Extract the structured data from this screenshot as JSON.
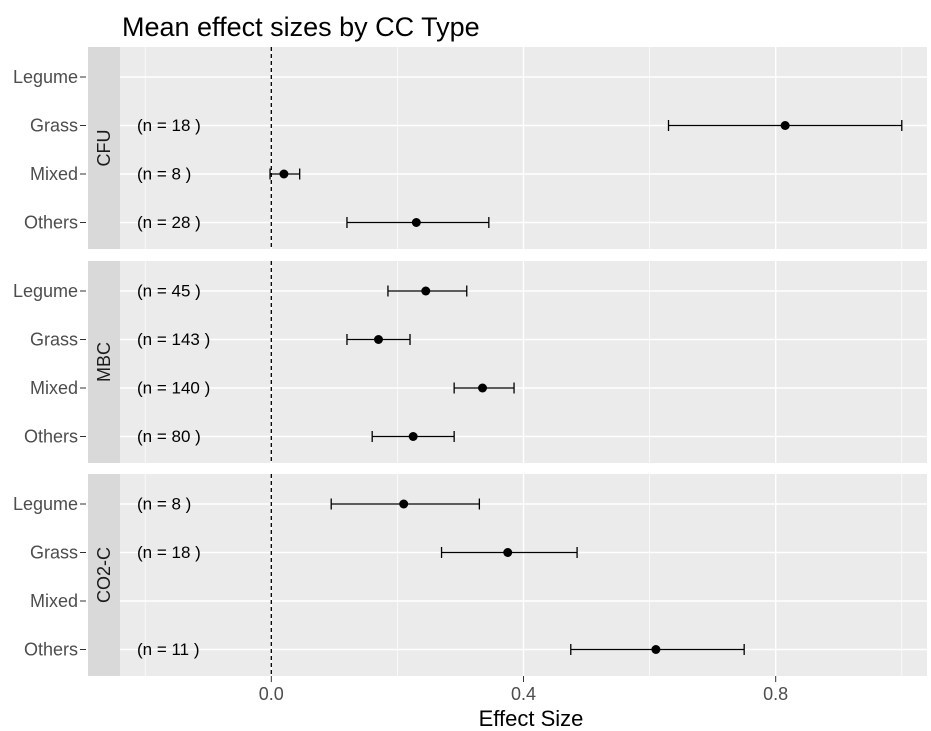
{
  "chart_data": {
    "type": "forest",
    "title": "Mean effect sizes by CC Type",
    "xlabel": "Effect Size",
    "x_ticks": [
      "0.0",
      "0.4",
      "0.8"
    ],
    "xlim": [
      -0.24,
      1.04
    ],
    "reference_line_x": 0.0,
    "categories": [
      "Legume",
      "Grass",
      "Mixed",
      "Others"
    ],
    "panels": [
      {
        "name": "CFU",
        "rows": [
          {
            "category": "Legume",
            "n_label": "",
            "mean": null,
            "lower": null,
            "upper": null
          },
          {
            "category": "Grass",
            "n_label": "(n =  18 )",
            "mean": 0.815,
            "lower": 0.63,
            "upper": 1.0
          },
          {
            "category": "Mixed",
            "n_label": "(n =  8 )",
            "mean": 0.02,
            "lower": -0.002,
            "upper": 0.045
          },
          {
            "category": "Others",
            "n_label": "(n =  28 )",
            "mean": 0.23,
            "lower": 0.12,
            "upper": 0.345
          }
        ]
      },
      {
        "name": "MBC",
        "rows": [
          {
            "category": "Legume",
            "n_label": "(n =  45 )",
            "mean": 0.245,
            "lower": 0.185,
            "upper": 0.31
          },
          {
            "category": "Grass",
            "n_label": "(n =  143 )",
            "mean": 0.17,
            "lower": 0.12,
            "upper": 0.22
          },
          {
            "category": "Mixed",
            "n_label": "(n =  140 )",
            "mean": 0.335,
            "lower": 0.29,
            "upper": 0.385
          },
          {
            "category": "Others",
            "n_label": "(n =  80 )",
            "mean": 0.225,
            "lower": 0.16,
            "upper": 0.29
          }
        ]
      },
      {
        "name": "CO2-C",
        "rows": [
          {
            "category": "Legume",
            "n_label": "(n =  8 )",
            "mean": 0.21,
            "lower": 0.095,
            "upper": 0.33
          },
          {
            "category": "Grass",
            "n_label": "(n =  18 )",
            "mean": 0.375,
            "lower": 0.27,
            "upper": 0.485
          },
          {
            "category": "Mixed",
            "n_label": "",
            "mean": null,
            "lower": null,
            "upper": null
          },
          {
            "category": "Others",
            "n_label": "(n =  11 )",
            "mean": 0.61,
            "lower": 0.475,
            "upper": 0.75
          }
        ]
      }
    ],
    "grid": true,
    "colors": {
      "panel_background": "#ebebeb",
      "grid": "#ffffff",
      "strip": "#d9d9d9",
      "points": "#000000"
    }
  }
}
